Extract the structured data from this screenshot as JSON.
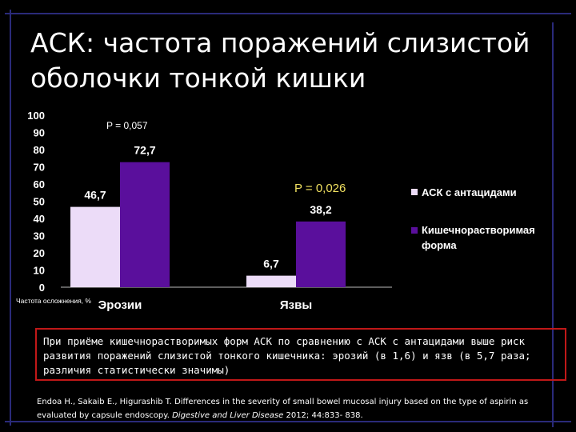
{
  "slide": {
    "title": "АСК: частота поражений слизистой оболочки тонкой кишки",
    "note": "При приёме кишечнорастворимых форм АСК по сравнению с АСК с антацидами выше риск развития поражений слизистой тонкого кишечника: эрозий (в 1,6) и язв (в 5,7 раза; различия статистически значимы)",
    "reference": {
      "authors": "Endoa H., Sakaib E., Higurashib T.",
      "title": "Differences in the severity of small bowel mucosal injury based on the type of aspirin as evaluated by capsule endoscopy.",
      "journal": "Digestive and Liver Disease",
      "details": "2012; 44:833- 838."
    }
  },
  "colors": {
    "series_1": "#ecdcf8",
    "series_2": "#5a0f9c",
    "p_value_2": "#f0e060",
    "frame": "#2a2a7a",
    "note_border": "#c01818"
  },
  "chart_data": {
    "type": "bar",
    "categories": [
      "Эрозии",
      "Язвы"
    ],
    "series": [
      {
        "name": "АСК с антацидами",
        "values": [
          46.7,
          6.7
        ],
        "labels": [
          "46,7",
          "6,7"
        ]
      },
      {
        "name": "Кишечнорастворимая форма",
        "values": [
          72.7,
          38.2
        ],
        "labels": [
          "72,7",
          "38,2"
        ]
      }
    ],
    "ylim": [
      0,
      100
    ],
    "yticks": [
      0,
      10,
      20,
      30,
      40,
      50,
      60,
      70,
      80,
      90,
      100
    ],
    "ylabel": "Частота осложнения, %",
    "annotations": [
      "P = 0,057",
      "P = 0,026"
    ],
    "legend_position": "right",
    "grid": false
  }
}
